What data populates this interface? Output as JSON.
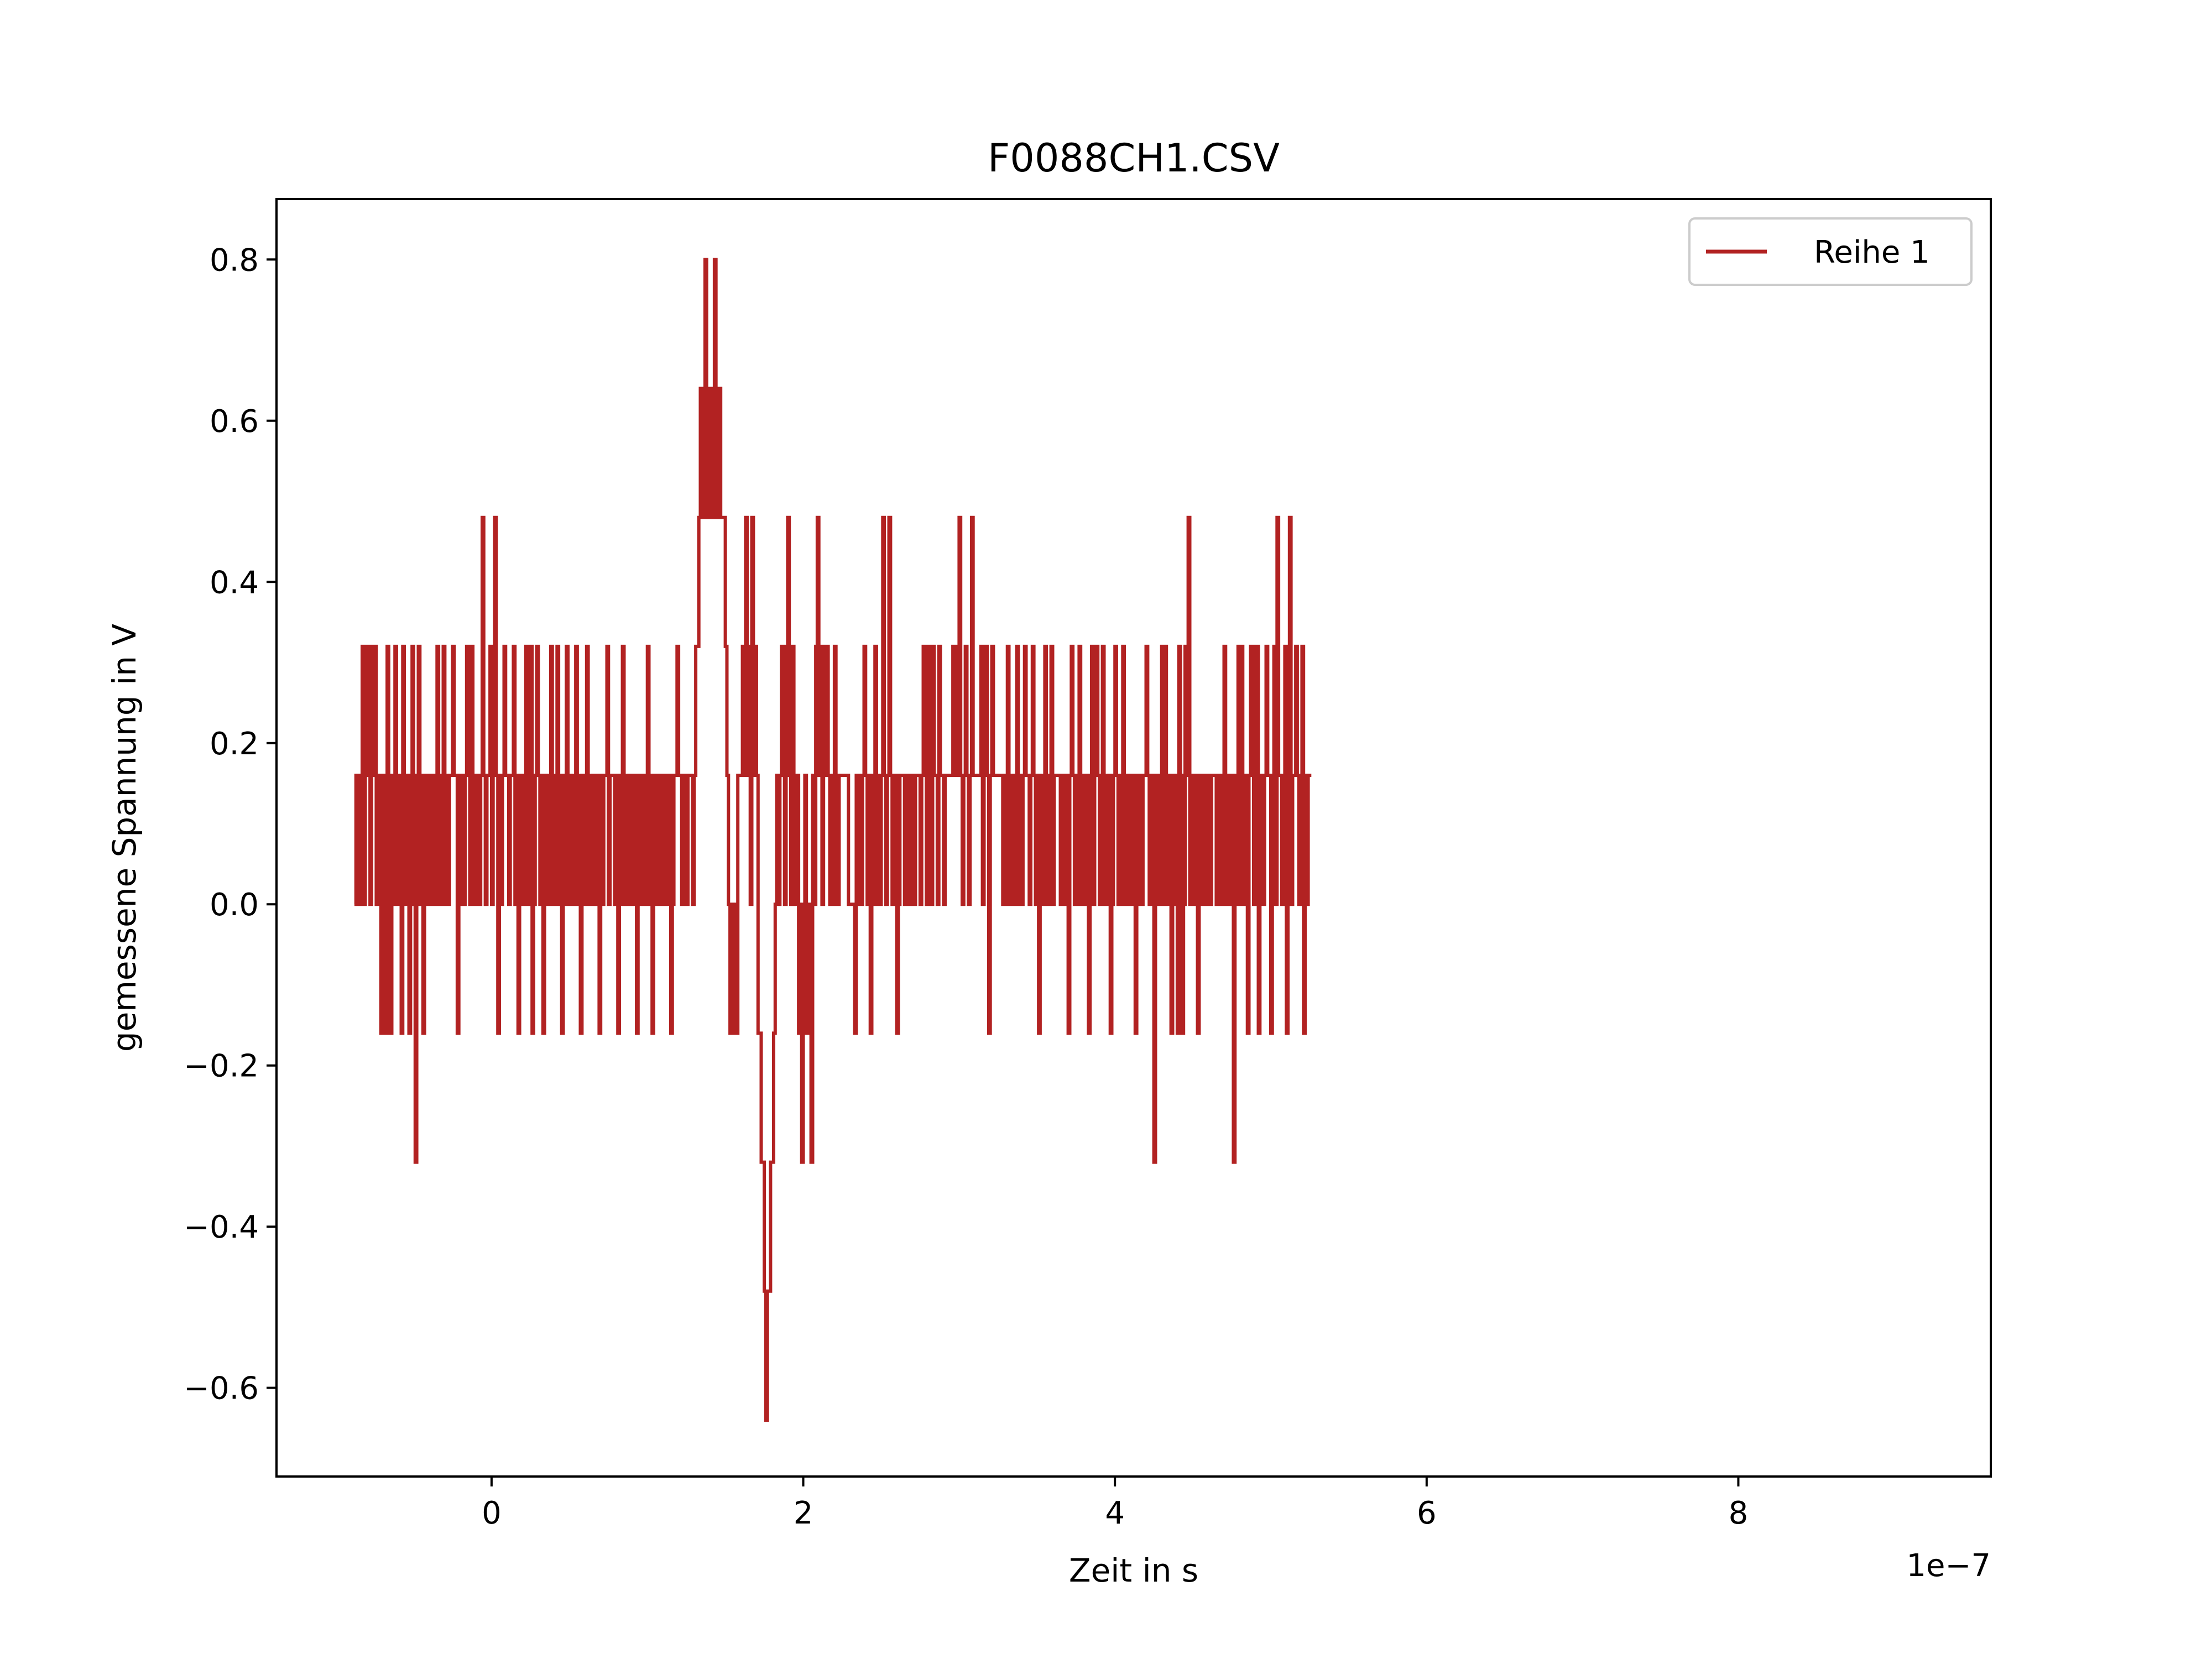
{
  "chart_data": {
    "type": "line",
    "title": "F0088CH1.CSV",
    "xlabel": "Zeit in s",
    "ylabel": "gemessene Spannung in V",
    "x_offset_label": "1e−7",
    "xlim": [
      -1.38,
      9.62
    ],
    "ylim": [
      -0.71,
      0.875
    ],
    "x_ticks": [
      0,
      2,
      4,
      6,
      8
    ],
    "x_tick_labels": [
      "0",
      "2",
      "4",
      "6",
      "8"
    ],
    "y_ticks": [
      -0.6,
      -0.4,
      -0.2,
      0.0,
      0.2,
      0.4,
      0.6,
      0.8
    ],
    "y_tick_labels": [
      "−0.6",
      "−0.4",
      "−0.2",
      "0.0",
      "0.2",
      "0.4",
      "0.6",
      "0.8"
    ],
    "grid": false,
    "legend_position": "upper right",
    "series": [
      {
        "name": "Reihe 1",
        "color": "#b22222",
        "x_start": -0.88,
        "x_step": 0.01,
        "values": [
          0.0,
          0.16,
          0.0,
          0.16,
          0.0,
          0.32,
          0.0,
          0.32,
          0.16,
          0.32,
          0.0,
          0.32,
          0.16,
          0.32,
          0.0,
          0.16,
          0.16,
          -0.16,
          0.0,
          0.16,
          -0.16,
          0.32,
          0.0,
          -0.16,
          0.16,
          0.0,
          0.32,
          0.16,
          0.0,
          0.16,
          -0.16,
          0.32,
          0.16,
          0.0,
          0.16,
          -0.16,
          0.0,
          0.32,
          0.16,
          -0.32,
          0.16,
          0.32,
          0.0,
          0.16,
          -0.16,
          0.0,
          0.16,
          0.16,
          0.0,
          0.16,
          0.16,
          0.0,
          0.16,
          0.32,
          0.0,
          0.16,
          0.0,
          0.32,
          0.0,
          0.16,
          0.0,
          0.16,
          0.16,
          0.32,
          0.16,
          0.16,
          -0.16,
          0.16,
          0.0,
          0.16,
          0.0,
          0.16,
          0.32,
          0.16,
          0.0,
          0.32,
          0.16,
          0.0,
          0.16,
          0.16,
          0.0,
          0.16,
          0.48,
          0.16,
          0.0,
          0.16,
          0.16,
          0.32,
          0.0,
          0.32,
          0.48,
          0.16,
          -0.16,
          0.16,
          0.0,
          0.16,
          0.32,
          0.16,
          0.16,
          0.0,
          0.16,
          0.16,
          0.32,
          0.0,
          0.16,
          -0.16,
          0.0,
          0.16,
          0.0,
          0.16,
          0.32,
          0.0,
          0.16,
          0.32,
          -0.16,
          0.0,
          0.16,
          0.32,
          0.16,
          0.0,
          0.16,
          -0.16,
          0.0,
          0.16,
          0.16,
          0.0,
          0.32,
          0.16,
          0.0,
          0.16,
          0.32,
          0.0,
          0.16,
          -0.16,
          0.0,
          0.16,
          0.32,
          0.0,
          0.16,
          0.16,
          0.0,
          0.16,
          0.32,
          0.0,
          0.16,
          -0.16,
          0.16,
          0.0,
          0.16,
          0.32,
          0.0,
          0.16,
          0.16,
          0.0,
          0.16,
          0.0,
          0.16,
          -0.16,
          0.16,
          0.0,
          0.16,
          0.16,
          0.32,
          0.0,
          0.16,
          0.16,
          0.16,
          0.0,
          0.16,
          -0.16,
          0.16,
          0.0,
          0.32,
          0.16,
          0.0,
          0.16,
          0.0,
          0.16,
          0.16,
          0.0,
          0.16,
          -0.16,
          0.16,
          0.0,
          0.16,
          0.16,
          0.0,
          0.16,
          0.32,
          0.0,
          0.16,
          -0.16,
          0.0,
          0.16,
          0.16,
          0.0,
          0.16,
          0.16,
          0.0,
          0.16,
          0.16,
          0.0,
          0.16,
          -0.16,
          0.0,
          0.16,
          0.16,
          0.32,
          0.16,
          0.16,
          0.0,
          0.16,
          0.16,
          0.0,
          0.16,
          0.16,
          0.16,
          0.0,
          0.16,
          0.32,
          0.32,
          0.48,
          0.64,
          0.48,
          0.64,
          0.8,
          0.48,
          0.64,
          0.48,
          0.64,
          0.48,
          0.8,
          0.64,
          0.48,
          0.64,
          0.48,
          0.48,
          0.48,
          0.32,
          0.16,
          0.0,
          -0.16,
          0.0,
          -0.16,
          0.0,
          -0.16,
          0.16,
          0.16,
          0.16,
          0.32,
          0.16,
          0.48,
          0.16,
          0.32,
          0.0,
          0.48,
          0.16,
          0.32,
          0.16,
          -0.16,
          -0.16,
          -0.32,
          -0.32,
          -0.48,
          -0.64,
          -0.48,
          -0.48,
          -0.32,
          -0.32,
          -0.16,
          0.0,
          0.16,
          0.0,
          0.16,
          0.32,
          0.16,
          0.0,
          0.32,
          0.48,
          0.16,
          0.0,
          0.32,
          0.16,
          0.0,
          0.16,
          -0.16,
          0.0,
          -0.32,
          0.0,
          0.16,
          -0.16,
          0.0,
          0.0,
          -0.32,
          0.16,
          0.0,
          0.32,
          0.48,
          0.16,
          0.32,
          0.0,
          0.32,
          0.16,
          0.32,
          0.16,
          0.0,
          0.16,
          0.0,
          0.32,
          0.16,
          0.0,
          0.16,
          0.16,
          0.16,
          0.16,
          0.16,
          0.16,
          0.0,
          0.0,
          0.0,
          0.0,
          -0.16,
          0.16,
          0.0,
          0.16,
          0.0,
          0.16,
          0.32,
          0.16,
          0.0,
          0.16,
          -0.16,
          0.0,
          0.16,
          0.32,
          0.0,
          0.16,
          0.0,
          0.16,
          0.48,
          0.16,
          0.0,
          0.16,
          0.48,
          0.16,
          0.0,
          0.16,
          0.16,
          -0.16,
          0.0,
          0.16,
          0.16,
          0.16,
          0.0,
          0.16,
          0.16,
          0.0,
          0.16,
          0.16,
          0.0,
          0.16,
          0.16,
          0.16,
          0.0,
          0.16,
          0.32,
          0.16,
          0.0,
          0.32,
          0.16,
          0.0,
          0.32,
          0.16,
          0.16,
          0.0,
          0.32,
          0.16,
          0.16,
          0.0,
          0.16,
          0.16,
          0.16,
          0.16,
          0.16,
          0.32,
          0.16,
          0.16,
          0.32,
          0.48,
          0.16,
          0.0,
          0.16,
          0.32,
          0.16,
          0.0,
          0.16,
          0.48,
          0.16,
          0.16,
          0.16,
          0.16,
          0.16,
          0.32,
          0.0,
          0.16,
          0.32,
          0.16,
          -0.16,
          0.16,
          0.32,
          0.16,
          0.16,
          0.16,
          0.16,
          0.16,
          0.16,
          0.0,
          0.0,
          0.16,
          0.32,
          0.0,
          0.16,
          0.16,
          0.0,
          0.16,
          0.32,
          0.0,
          0.16,
          0.0,
          0.16,
          0.32,
          0.16,
          0.16,
          0.0,
          0.16,
          0.32,
          0.16,
          0.0,
          0.16,
          -0.16,
          0.16,
          0.16,
          0.0,
          0.32,
          0.16,
          0.0,
          0.16,
          0.32,
          0.0,
          0.16,
          0.16,
          0.16,
          0.16,
          0.0,
          0.16,
          0.0,
          0.16,
          0.0,
          -0.16,
          0.16,
          0.32,
          0.16,
          0.0,
          0.16,
          0.0,
          0.32,
          0.16,
          0.0,
          0.16,
          0.0,
          0.16,
          -0.16,
          0.16,
          0.32,
          0.0,
          0.16,
          0.32,
          0.16,
          0.0,
          0.16,
          0.32,
          0.0,
          0.16,
          0.0,
          0.16,
          -0.16,
          0.0,
          0.16,
          0.32,
          0.16,
          0.0,
          0.16,
          0.0,
          0.32,
          0.0,
          0.16,
          0.0,
          0.16,
          0.16,
          0.0,
          0.16,
          -0.16,
          0.0,
          0.16,
          0.16,
          0.0,
          0.16,
          0.16,
          0.32,
          0.16,
          0.0,
          0.16,
          0.0,
          -0.32,
          0.16,
          0.16,
          0.0,
          0.16,
          0.32,
          0.0,
          0.32,
          0.16,
          0.0,
          0.16,
          -0.16,
          0.16,
          0.0,
          0.16,
          -0.16,
          0.32,
          0.16,
          -0.16,
          0.0,
          0.32,
          0.16,
          0.48,
          0.0,
          0.16,
          0.16,
          0.0,
          0.16,
          -0.16,
          0.16,
          0.0,
          0.16,
          0.16,
          0.0,
          0.16,
          0.16,
          0.0,
          0.16,
          0.16,
          0.16,
          0.0,
          0.16,
          0.16,
          0.0,
          0.16,
          0.32,
          0.0,
          0.16,
          0.16,
          0.0,
          0.16,
          -0.32,
          0.0,
          0.16,
          0.32,
          0.0,
          0.32,
          0.16,
          0.0,
          0.16,
          -0.16,
          0.16,
          0.32,
          0.32,
          0.0,
          0.16,
          0.32,
          -0.16,
          0.16,
          0.16,
          0.0,
          0.16,
          0.32,
          0.16,
          0.16,
          -0.16,
          0.16,
          0.32,
          0.0,
          0.48,
          0.16,
          0.16,
          0.0,
          0.16,
          0.32,
          -0.16,
          0.16,
          0.48,
          0.0,
          0.16,
          0.16,
          0.32,
          0.16,
          0.0,
          0.16,
          0.32,
          -0.16,
          0.16,
          0.0,
          0.16,
          0.16,
          0.16
        ]
      }
    ]
  }
}
